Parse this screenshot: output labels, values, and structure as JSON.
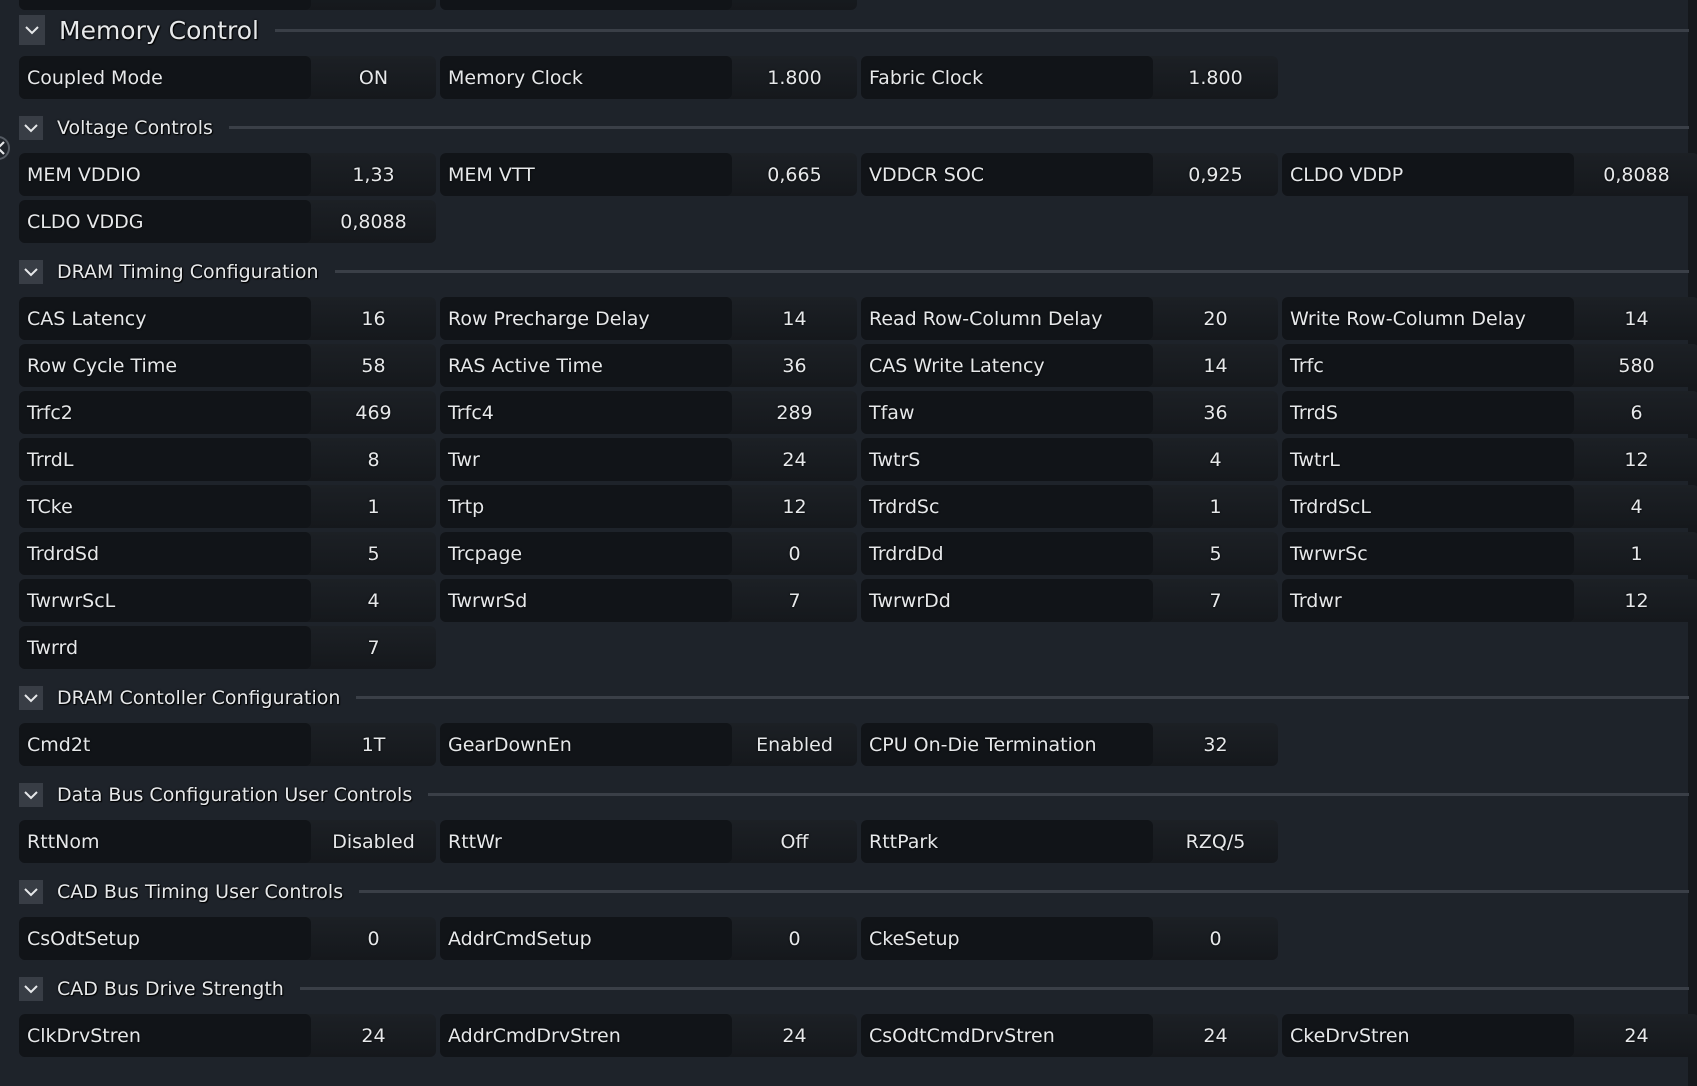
{
  "sections": [
    {
      "title": "Memory Control",
      "big": true,
      "items": [
        {
          "label": "Coupled Mode",
          "value": "ON"
        },
        {
          "label": "Memory Clock",
          "value": "1.800"
        },
        {
          "label": "Fabric Clock",
          "value": "1.800"
        }
      ]
    },
    {
      "title": "Voltage Controls",
      "items": [
        {
          "label": "MEM VDDIO",
          "value": "1,33"
        },
        {
          "label": "MEM VTT",
          "value": "0,665"
        },
        {
          "label": "VDDCR SOC",
          "value": "0,925"
        },
        {
          "label": "CLDO VDDP",
          "value": "0,8088"
        },
        {
          "label": "CLDO VDDG",
          "value": "0,8088"
        }
      ]
    },
    {
      "title": "DRAM Timing Configuration",
      "items": [
        {
          "label": "CAS Latency",
          "value": "16"
        },
        {
          "label": "Row Precharge Delay",
          "value": "14"
        },
        {
          "label": "Read Row-Column Delay",
          "value": "20"
        },
        {
          "label": "Write Row-Column Delay",
          "value": "14"
        },
        {
          "label": "Row Cycle Time",
          "value": "58"
        },
        {
          "label": "RAS Active Time",
          "value": "36"
        },
        {
          "label": "CAS Write Latency",
          "value": "14"
        },
        {
          "label": "Trfc",
          "value": "580"
        },
        {
          "label": "Trfc2",
          "value": "469"
        },
        {
          "label": "Trfc4",
          "value": "289"
        },
        {
          "label": "Tfaw",
          "value": "36"
        },
        {
          "label": "TrrdS",
          "value": "6"
        },
        {
          "label": "TrrdL",
          "value": "8"
        },
        {
          "label": "Twr",
          "value": "24"
        },
        {
          "label": "TwtrS",
          "value": "4"
        },
        {
          "label": "TwtrL",
          "value": "12"
        },
        {
          "label": "TCke",
          "value": "1"
        },
        {
          "label": "Trtp",
          "value": "12"
        },
        {
          "label": "TrdrdSc",
          "value": "1"
        },
        {
          "label": "TrdrdScL",
          "value": "4"
        },
        {
          "label": "TrdrdSd",
          "value": "5"
        },
        {
          "label": "Trcpage",
          "value": "0"
        },
        {
          "label": "TrdrdDd",
          "value": "5"
        },
        {
          "label": "TwrwrSc",
          "value": "1"
        },
        {
          "label": "TwrwrScL",
          "value": "4"
        },
        {
          "label": "TwrwrSd",
          "value": "7"
        },
        {
          "label": "TwrwrDd",
          "value": "7"
        },
        {
          "label": "Trdwr",
          "value": "12"
        },
        {
          "label": "Twrrd",
          "value": "7"
        }
      ]
    },
    {
      "title": "DRAM Contoller Configuration",
      "items": [
        {
          "label": "Cmd2t",
          "value": "1T"
        },
        {
          "label": "GearDownEn",
          "value": "Enabled"
        },
        {
          "label": "CPU On-Die Termination",
          "value": "32"
        }
      ]
    },
    {
      "title": "Data Bus Configuration User Controls",
      "items": [
        {
          "label": "RttNom",
          "value": "Disabled"
        },
        {
          "label": "RttWr",
          "value": "Off"
        },
        {
          "label": "RttPark",
          "value": "RZQ/5"
        }
      ]
    },
    {
      "title": "CAD Bus Timing User Controls",
      "items": [
        {
          "label": "CsOdtSetup",
          "value": "0"
        },
        {
          "label": "AddrCmdSetup",
          "value": "0"
        },
        {
          "label": "CkeSetup",
          "value": "0"
        }
      ]
    },
    {
      "title": "CAD Bus Drive Strength",
      "items": [
        {
          "label": "ClkDrvStren",
          "value": "24"
        },
        {
          "label": "AddrCmdDrvStren",
          "value": "24"
        },
        {
          "label": "CsOdtCmdDrvStren",
          "value": "24"
        },
        {
          "label": "CkeDrvStren",
          "value": "24"
        }
      ]
    }
  ],
  "icons": {
    "toggle": "chevron-down-icon",
    "back": "chevron-left-icon"
  }
}
